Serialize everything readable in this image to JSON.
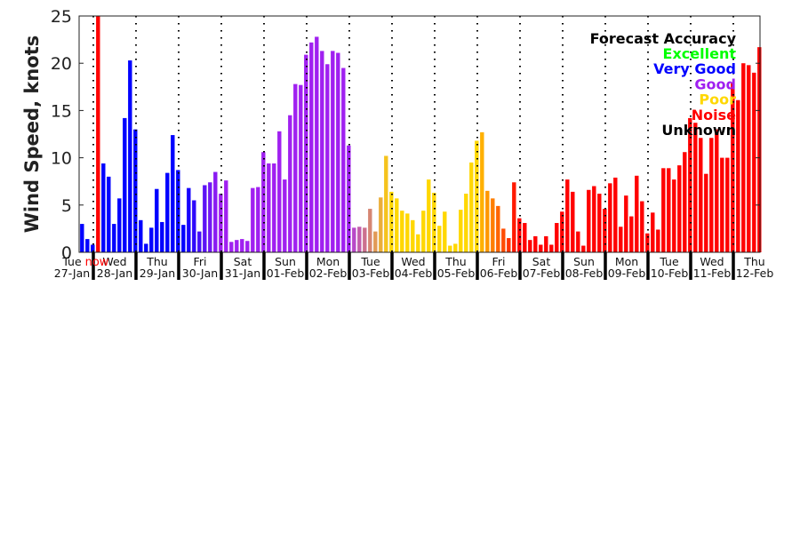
{
  "chart_data": {
    "type": "bar",
    "title": "",
    "xlabel": "",
    "ylabel": "Wind Speed, knots",
    "ylim": [
      0,
      25
    ],
    "yticks": [
      "0",
      "5",
      "10",
      "15",
      "20",
      "25"
    ],
    "now_label": "now",
    "now_value": 25,
    "now_color": "#ff0000",
    "legend": {
      "title": "Forecast Accuracy",
      "placement": "top-right",
      "entries": [
        {
          "label": "Excellent",
          "color": "#00ff00"
        },
        {
          "label": "Very Good",
          "color": "#0000ff"
        },
        {
          "label": "Good",
          "color": "#a020f0"
        },
        {
          "label": "Poor",
          "color": "#ffd700"
        },
        {
          "label": "Noise",
          "color": "#ff0000"
        },
        {
          "label": "Unknown",
          "color": "#000000"
        }
      ]
    },
    "days": [
      {
        "name": "Tue",
        "date": "27-Jan",
        "values": [
          3.0,
          1.4,
          0.8
        ],
        "from": "#0000ff",
        "to": "#0000ff"
      },
      {
        "name": "Wed",
        "date": "28-Jan",
        "values": [
          null,
          9.4,
          8.0,
          3.0,
          5.7,
          14.2,
          20.3,
          13.0
        ],
        "from": "#0000ff",
        "to": "#0000ff"
      },
      {
        "name": "Thu",
        "date": "29-Jan",
        "values": [
          3.4,
          0.9,
          2.6,
          6.7,
          3.2,
          8.4,
          12.4,
          8.7
        ],
        "from": "#0000ff",
        "to": "#0000ff"
      },
      {
        "name": "Fri",
        "date": "30-Jan",
        "values": [
          2.9,
          6.8,
          5.5,
          2.2,
          7.1,
          7.4,
          8.5,
          6.2
        ],
        "from": "#0000ff",
        "to": "#a020f0"
      },
      {
        "name": "Sat",
        "date": "31-Jan",
        "values": [
          7.6,
          1.1,
          1.3,
          1.4,
          1.2,
          6.8,
          6.9,
          10.6
        ],
        "from": "#a020f0",
        "to": "#a020f0"
      },
      {
        "name": "Sun",
        "date": "01-Feb",
        "values": [
          9.4,
          9.4,
          12.8,
          7.7,
          14.5,
          17.8,
          17.7,
          20.9
        ],
        "from": "#a020f0",
        "to": "#a020f0"
      },
      {
        "name": "Mon",
        "date": "02-Feb",
        "values": [
          22.2,
          22.8,
          21.3,
          19.9,
          21.3,
          21.1,
          19.5,
          11.3
        ],
        "from": "#a020f0",
        "to": "#a020f0"
      },
      {
        "name": "Tue",
        "date": "03-Feb",
        "values": [
          2.6,
          2.7,
          2.6,
          4.6,
          2.2,
          5.8,
          10.2,
          6.4
        ],
        "from": "#b848c8",
        "to": "#ffd700"
      },
      {
        "name": "Wed",
        "date": "04-Feb",
        "values": [
          5.7,
          4.4,
          4.1,
          3.4,
          1.9,
          4.4,
          7.7,
          6.3
        ],
        "from": "#ffd700",
        "to": "#ffd700"
      },
      {
        "name": "Thu",
        "date": "05-Feb",
        "values": [
          2.8,
          4.3,
          0.7,
          0.9,
          4.5,
          6.2,
          9.5,
          11.8
        ],
        "from": "#ffd700",
        "to": "#ffd700"
      },
      {
        "name": "Fri",
        "date": "06-Feb",
        "values": [
          12.7,
          6.5,
          5.7,
          4.9,
          2.5,
          1.5,
          7.4,
          3.6
        ],
        "from": "#ffb000",
        "to": "#ff0000"
      },
      {
        "name": "Sat",
        "date": "07-Feb",
        "values": [
          3.1,
          1.3,
          1.7,
          0.8,
          1.7,
          0.8,
          3.1,
          4.3
        ],
        "from": "#ff0000",
        "to": "#ff0000"
      },
      {
        "name": "Sun",
        "date": "08-Feb",
        "values": [
          7.7,
          6.4,
          2.2,
          0.7,
          6.6,
          7.0,
          6.2,
          4.6
        ],
        "from": "#ff0000",
        "to": "#ff0000"
      },
      {
        "name": "Mon",
        "date": "09-Feb",
        "values": [
          7.3,
          7.9,
          2.7,
          6.0,
          3.8,
          8.1,
          5.4,
          2.0
        ],
        "from": "#ff0000",
        "to": "#ff0000"
      },
      {
        "name": "Tue",
        "date": "10-Feb",
        "values": [
          4.2,
          2.4,
          8.9,
          8.9,
          7.7,
          9.2,
          10.6,
          14.2
        ],
        "from": "#ff0000",
        "to": "#ff0000"
      },
      {
        "name": "Wed",
        "date": "11-Feb",
        "values": [
          13.7,
          12.1,
          8.3,
          12.1,
          13.0,
          10.0,
          10.0,
          18.0
        ],
        "from": "#ff0000",
        "to": "#ff0000"
      },
      {
        "name": "Thu",
        "date": "12-Feb",
        "values": [
          16.1,
          20.0,
          19.8,
          19.0,
          21.7
        ],
        "from": "#ff0000",
        "to": "#ff0000"
      }
    ]
  }
}
